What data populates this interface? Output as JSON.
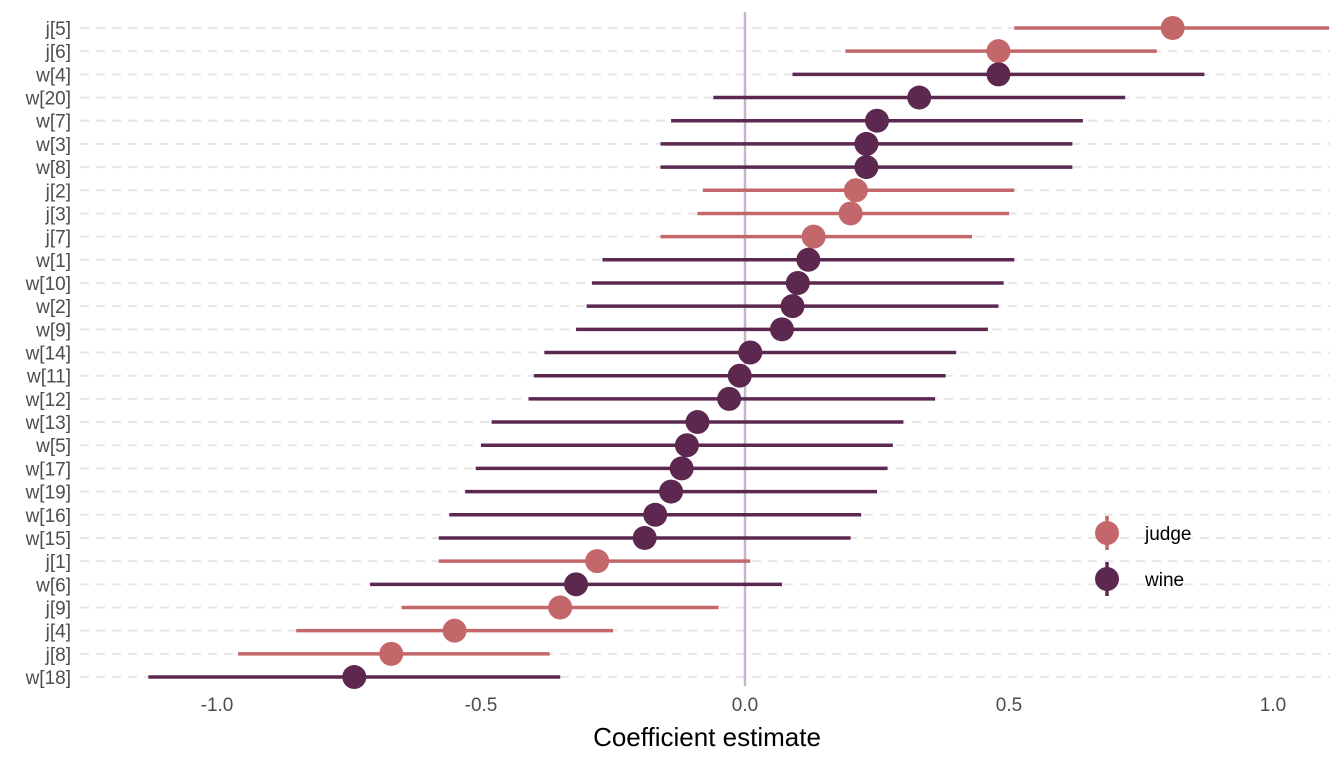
{
  "chart_data": {
    "type": "scatter",
    "subtype": "coefficient-interval-plot",
    "xlabel": "Coefficient estimate",
    "ylabel": "",
    "xlim": [
      -1.25,
      1.1
    ],
    "xticks": [
      -1.0,
      -0.5,
      0.0,
      0.5,
      1.0
    ],
    "xtick_labels": [
      "-1.0",
      "-0.5",
      "0.0",
      "0.5",
      "1.0"
    ],
    "reference_line_x": 0.0,
    "grid": "dashed horizontal gridlines per row",
    "legend_position": "right",
    "series": [
      {
        "name": "judge",
        "color": "#c4676a"
      },
      {
        "name": "wine",
        "color": "#5c2850"
      }
    ],
    "points": [
      {
        "label": "j[5]",
        "group": "judge",
        "estimate": 0.81,
        "low": 0.51,
        "high": 1.11
      },
      {
        "label": "j[6]",
        "group": "judge",
        "estimate": 0.48,
        "low": 0.19,
        "high": 0.78
      },
      {
        "label": "w[4]",
        "group": "wine",
        "estimate": 0.48,
        "low": 0.09,
        "high": 0.87
      },
      {
        "label": "w[20]",
        "group": "wine",
        "estimate": 0.33,
        "low": -0.06,
        "high": 0.72
      },
      {
        "label": "w[7]",
        "group": "wine",
        "estimate": 0.25,
        "low": -0.14,
        "high": 0.64
      },
      {
        "label": "w[3]",
        "group": "wine",
        "estimate": 0.23,
        "low": -0.16,
        "high": 0.62
      },
      {
        "label": "w[8]",
        "group": "wine",
        "estimate": 0.23,
        "low": -0.16,
        "high": 0.62
      },
      {
        "label": "j[2]",
        "group": "judge",
        "estimate": 0.21,
        "low": -0.08,
        "high": 0.51
      },
      {
        "label": "j[3]",
        "group": "judge",
        "estimate": 0.2,
        "low": -0.09,
        "high": 0.5
      },
      {
        "label": "j[7]",
        "group": "judge",
        "estimate": 0.13,
        "low": -0.16,
        "high": 0.43
      },
      {
        "label": "w[1]",
        "group": "wine",
        "estimate": 0.12,
        "low": -0.27,
        "high": 0.51
      },
      {
        "label": "w[10]",
        "group": "wine",
        "estimate": 0.1,
        "low": -0.29,
        "high": 0.49
      },
      {
        "label": "w[2]",
        "group": "wine",
        "estimate": 0.09,
        "low": -0.3,
        "high": 0.48
      },
      {
        "label": "w[9]",
        "group": "wine",
        "estimate": 0.07,
        "low": -0.32,
        "high": 0.46
      },
      {
        "label": "w[14]",
        "group": "wine",
        "estimate": 0.01,
        "low": -0.38,
        "high": 0.4
      },
      {
        "label": "w[11]",
        "group": "wine",
        "estimate": -0.01,
        "low": -0.4,
        "high": 0.38
      },
      {
        "label": "w[12]",
        "group": "wine",
        "estimate": -0.03,
        "low": -0.41,
        "high": 0.36
      },
      {
        "label": "w[13]",
        "group": "wine",
        "estimate": -0.09,
        "low": -0.48,
        "high": 0.3
      },
      {
        "label": "w[5]",
        "group": "wine",
        "estimate": -0.11,
        "low": -0.5,
        "high": 0.28
      },
      {
        "label": "w[17]",
        "group": "wine",
        "estimate": -0.12,
        "low": -0.51,
        "high": 0.27
      },
      {
        "label": "w[19]",
        "group": "wine",
        "estimate": -0.14,
        "low": -0.53,
        "high": 0.25
      },
      {
        "label": "w[16]",
        "group": "wine",
        "estimate": -0.17,
        "low": -0.56,
        "high": 0.22
      },
      {
        "label": "w[15]",
        "group": "wine",
        "estimate": -0.19,
        "low": -0.58,
        "high": 0.2
      },
      {
        "label": "j[1]",
        "group": "judge",
        "estimate": -0.28,
        "low": -0.58,
        "high": 0.01
      },
      {
        "label": "w[6]",
        "group": "wine",
        "estimate": -0.32,
        "low": -0.71,
        "high": 0.07
      },
      {
        "label": "j[9]",
        "group": "judge",
        "estimate": -0.35,
        "low": -0.65,
        "high": -0.05
      },
      {
        "label": "j[4]",
        "group": "judge",
        "estimate": -0.55,
        "low": -0.85,
        "high": -0.25
      },
      {
        "label": "j[8]",
        "group": "judge",
        "estimate": -0.67,
        "low": -0.96,
        "high": -0.37
      },
      {
        "label": "w[18]",
        "group": "wine",
        "estimate": -0.74,
        "low": -1.13,
        "high": -0.35
      }
    ]
  }
}
